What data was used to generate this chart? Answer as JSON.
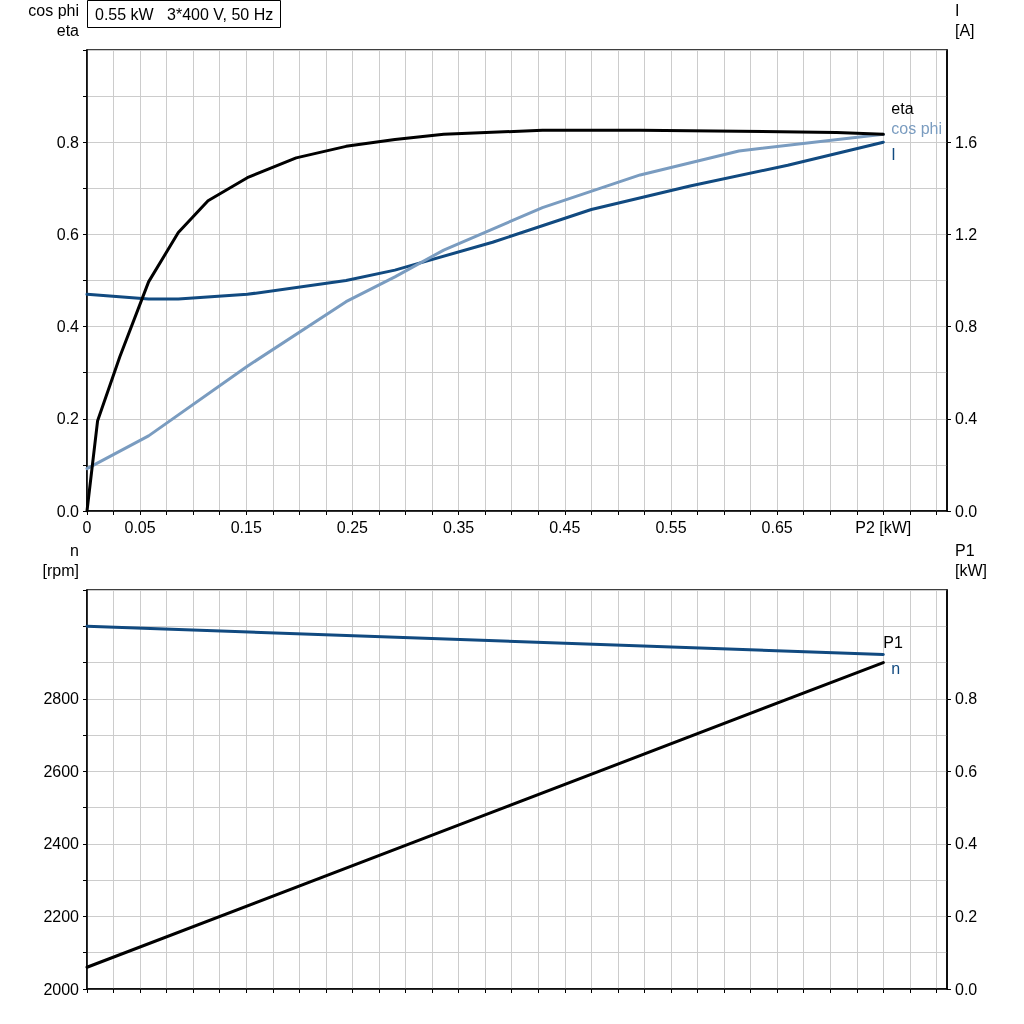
{
  "chart_data": [
    {
      "type": "line",
      "title": "0.55 kW   3*400 V, 50 Hz",
      "ylabel": "cos phi\neta",
      "y2label": "I\n[A]",
      "xlim": [
        0,
        0.81
      ],
      "xticks": [
        0,
        {
          "value": 0.025,
          "label": null
        },
        0.05,
        {
          "value": 0.075,
          "label": null
        },
        {
          "value": 0.1,
          "label": null
        },
        {
          "value": 0.125,
          "label": null
        },
        0.15,
        {
          "value": 0.175,
          "label": null
        },
        {
          "value": 0.2,
          "label": null
        },
        {
          "value": 0.225,
          "label": null
        },
        0.25,
        {
          "value": 0.275,
          "label": null
        },
        {
          "value": 0.3,
          "label": null
        },
        {
          "value": 0.325,
          "label": null
        },
        0.35,
        {
          "value": 0.375,
          "label": null
        },
        {
          "value": 0.4,
          "label": null
        },
        {
          "value": 0.425,
          "label": null
        },
        0.45,
        {
          "value": 0.475,
          "label": null
        },
        {
          "value": 0.5,
          "label": null
        },
        {
          "value": 0.525,
          "label": null
        },
        0.55,
        {
          "value": 0.575,
          "label": null
        },
        {
          "value": 0.6,
          "label": null
        },
        {
          "value": 0.625,
          "label": null
        },
        0.65,
        {
          "value": 0.675,
          "label": null
        },
        {
          "value": 0.7,
          "label": null
        },
        {
          "value": 0.725,
          "label": null
        },
        {
          "value": 0.75,
          "label": "P2 [kW]"
        },
        {
          "value": 0.775,
          "label": null
        },
        {
          "value": 0.8,
          "label": null
        }
      ],
      "ylim": [
        0,
        1.0
      ],
      "yticks": [
        {
          "value": 0,
          "label": "0.0"
        },
        {
          "value": 0.1,
          "label": null
        },
        0.2,
        {
          "value": 0.3,
          "label": null
        },
        0.4,
        {
          "value": 0.5,
          "label": null
        },
        0.6,
        {
          "value": 0.7,
          "label": null
        },
        0.8,
        {
          "value": 0.9,
          "label": null
        },
        {
          "value": 1.0,
          "label": null
        }
      ],
      "y2lim": [
        0,
        2.0
      ],
      "y2ticks": [
        {
          "value": 0,
          "label": "0.0"
        },
        0.4,
        0.8,
        1.2,
        1.6
      ],
      "grid": true,
      "legend": false,
      "marker": "none",
      "line_style": "solid",
      "series": [
        {
          "name": "eta",
          "color": "#000000",
          "x": [
            0,
            0.01,
            0.031,
            0.058,
            0.086,
            0.114,
            0.151,
            0.197,
            0.244,
            0.29,
            0.336,
            0.429,
            0.521,
            0.614,
            0.706,
            0.75
          ],
          "values": [
            0,
            0.196,
            0.335,
            0.497,
            0.604,
            0.673,
            0.723,
            0.766,
            0.791,
            0.806,
            0.817,
            0.826,
            0.826,
            0.824,
            0.821,
            0.817
          ]
        },
        {
          "name": "cos phi",
          "color": "#7a9cc0",
          "x": [
            0,
            0.058,
            0.151,
            0.244,
            0.29,
            0.336,
            0.429,
            0.521,
            0.614,
            0.75
          ],
          "values": [
            0.092,
            0.163,
            0.314,
            0.454,
            0.508,
            0.566,
            0.658,
            0.729,
            0.781,
            0.817
          ]
        },
        {
          "name": "I",
          "color": "#114a80",
          "axis": "y2",
          "x": [
            0,
            0.058,
            0.086,
            0.151,
            0.244,
            0.29,
            0.382,
            0.475,
            0.568,
            0.66,
            0.75
          ],
          "values": [
            0.94,
            0.92,
            0.92,
            0.94,
            1.0,
            1.045,
            1.166,
            1.308,
            1.41,
            1.5,
            1.6
          ]
        }
      ]
    },
    {
      "type": "line",
      "ylabel": "n\n[rpm]",
      "y2label": "P1\n[kW]",
      "xlim": [
        0,
        0.81
      ],
      "tick_labels": "y",
      "xticks": [
        0,
        0.025,
        0.05,
        0.075,
        0.1,
        0.125,
        0.15,
        0.175,
        0.2,
        0.225,
        0.25,
        0.275,
        0.3,
        0.325,
        0.35,
        0.375,
        0.4,
        0.425,
        0.45,
        0.475,
        0.5,
        0.525,
        0.55,
        0.575,
        0.6,
        0.625,
        0.65,
        0.675,
        0.7,
        0.725,
        0.75,
        0.775,
        0.8
      ],
      "ylim": [
        2000,
        3100
      ],
      "yticks": [
        2000,
        {
          "value": 2100,
          "label": null
        },
        2200,
        {
          "value": 2300,
          "label": null
        },
        2400,
        {
          "value": 2500,
          "label": null
        },
        2600,
        {
          "value": 2700,
          "label": null
        },
        2800,
        {
          "value": 2900,
          "label": null
        },
        {
          "value": 3000,
          "label": null
        },
        {
          "value": 3100,
          "label": null
        }
      ],
      "y2lim": [
        0,
        1.1
      ],
      "y2ticks": [
        {
          "value": 0,
          "label": "0.0"
        },
        0.2,
        0.4,
        0.6,
        0.8
      ],
      "grid": true,
      "legend": false,
      "marker": "none",
      "line_style": "solid",
      "series": [
        {
          "name": "n",
          "color": "#114a80",
          "x": [
            0,
            0.75
          ],
          "values": [
            3000,
            2922
          ]
        },
        {
          "name": "P1",
          "color": "#000000",
          "axis": "y2",
          "x": [
            0,
            0.375,
            0.75
          ],
          "values": [
            0.06,
            0.48,
            0.9
          ]
        }
      ]
    }
  ]
}
